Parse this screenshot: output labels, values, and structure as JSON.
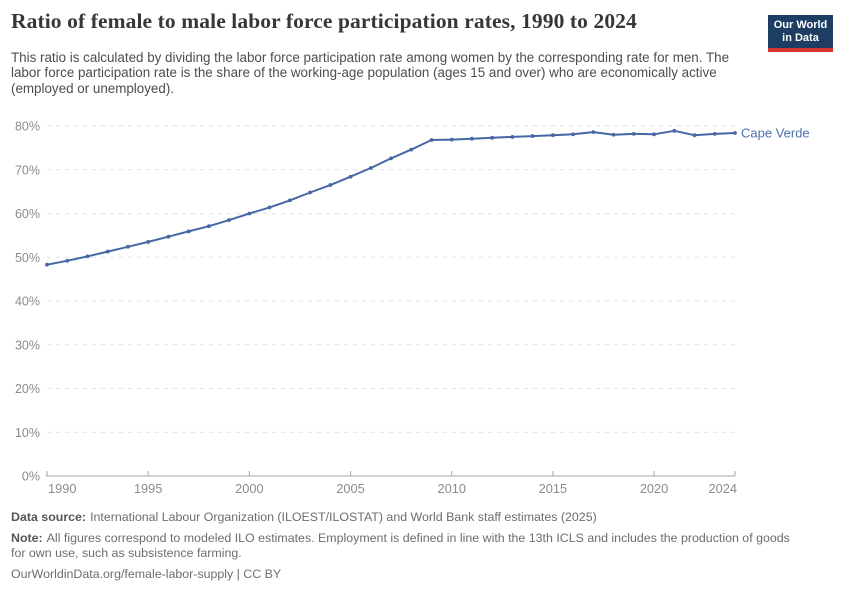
{
  "header": {
    "title": "Ratio of female to male labor force participation rates, 1990 to 2024",
    "subtitle": "This ratio is calculated by dividing the labor force participation rate among women by the corresponding rate for men. The labor force participation rate is the share of the working-age population (ages 15 and over) who are economically active (employed or unemployed).",
    "logo": {
      "line1": "Our World",
      "line2": "in Data"
    }
  },
  "chart_data": {
    "type": "line",
    "title": "Ratio of female to male labor force participation rates, 1990 to 2024",
    "entity": "Cape Verde",
    "x": [
      1990,
      1991,
      1992,
      1993,
      1994,
      1995,
      1996,
      1997,
      1998,
      1999,
      2000,
      2001,
      2002,
      2003,
      2004,
      2005,
      2006,
      2007,
      2008,
      2009,
      2010,
      2011,
      2012,
      2013,
      2014,
      2015,
      2016,
      2017,
      2018,
      2019,
      2020,
      2021,
      2022,
      2023,
      2024
    ],
    "series": [
      {
        "name": "Cape Verde",
        "color": "#4667a5",
        "values": [
          48.3,
          49.2,
          50.2,
          51.3,
          52.4,
          53.5,
          54.7,
          55.9,
          57.1,
          58.5,
          60.0,
          61.4,
          63.0,
          64.8,
          66.5,
          68.4,
          70.4,
          72.6,
          74.6,
          76.8,
          76.9,
          77.1,
          77.3,
          77.5,
          77.7,
          77.9,
          78.1,
          78.6,
          78.0,
          78.2,
          78.1,
          78.9,
          77.9,
          78.2,
          78.4
        ]
      }
    ],
    "xlim": [
      1990,
      2024
    ],
    "ylim": [
      0,
      80
    ],
    "x_ticks": [
      1990,
      1995,
      2000,
      2005,
      2010,
      2015,
      2020,
      2024
    ],
    "y_ticks": [
      0,
      10,
      20,
      30,
      40,
      50,
      60,
      70,
      80
    ],
    "y_tick_suffix": "%",
    "grid": "horizontal-dashed",
    "legend": "line-end-label"
  },
  "footer": {
    "data_source_label": "Data source:",
    "data_source_text": "International Labour Organization (ILOEST/ILOSTAT) and World Bank staff estimates (2025)",
    "note_label": "Note:",
    "note_text": "All figures correspond to modeled ILO estimates. Employment is defined in line with the 13th ICLS and includes the production of goods for own use, such as subsistence farming.",
    "attribution": "OurWorldinData.org/female-labor-supply | CC BY"
  },
  "colors": {
    "line": "#4667a5",
    "series_label": "#4e6fae",
    "grid": "#e2e2e2",
    "axis": "#a6a6a6",
    "tick_label": "#8b8b8b",
    "logo_bg": "#1d3d63",
    "logo_stripe": "#d8352e"
  }
}
